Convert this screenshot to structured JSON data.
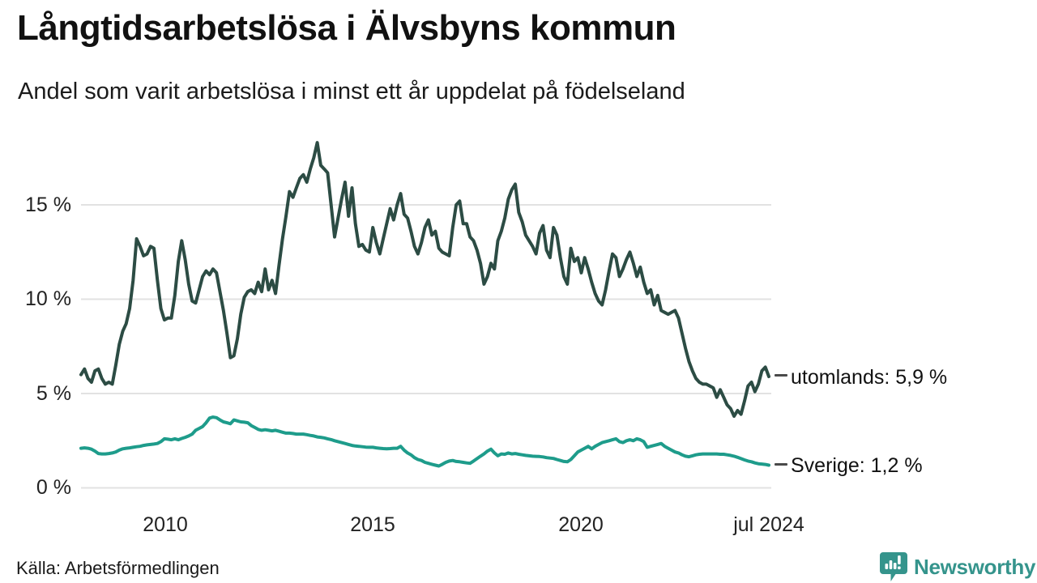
{
  "header": {
    "title": "Långtidsarbetslösa i Älvsbyns kommun",
    "subtitle": "Andel som varit arbetslösa i minst ett år uppdelat på födelseland"
  },
  "footer": {
    "source": "Källa: Arbetsförmedlingen",
    "brand": "Newsworthy"
  },
  "colors": {
    "utomlands_line": "#2c4c44",
    "sverige_line": "#1e9c8b",
    "grid": "#e2e2e2",
    "text": "#1a1a1a",
    "tick_dash": "#4a4a4a",
    "brand_teal": "#35948c"
  },
  "chart_data": {
    "type": "line",
    "title": "Långtidsarbetslösa i Älvsbyns kommun",
    "subtitle": "Andel som varit arbetslösa i minst ett år uppdelat på födelseland",
    "unit": "%",
    "grid": true,
    "legend_position": "end-of-line-right",
    "x_start": 2008.0,
    "x_step_years": 0.0833333,
    "xlim": [
      2008.0,
      2024.5
    ],
    "ylim": [
      0,
      15
    ],
    "yticks": [
      {
        "value": 15,
        "label": "15 %"
      },
      {
        "value": 10,
        "label": "10 %"
      },
      {
        "value": 5,
        "label": "5 %"
      },
      {
        "value": 0,
        "label": "0 %"
      }
    ],
    "xticks": [
      {
        "value": 2010,
        "label": "2010"
      },
      {
        "value": 2015,
        "label": "2015"
      },
      {
        "value": 2020,
        "label": "2020"
      },
      {
        "value": 2024.5,
        "label": "jul 2024"
      }
    ],
    "series": [
      {
        "name": "utomlands",
        "end_label": "utomlands: 5,9 %",
        "last_value": 5.9,
        "color": "#2c4c44",
        "values": [
          6.0,
          6.3,
          5.8,
          5.6,
          6.2,
          6.3,
          5.8,
          5.5,
          5.6,
          5.5,
          6.5,
          7.6,
          8.3,
          8.7,
          9.5,
          11.0,
          13.2,
          12.8,
          12.3,
          12.4,
          12.8,
          12.7,
          11.0,
          9.5,
          8.9,
          9.0,
          9.0,
          10.2,
          12.0,
          13.1,
          12.1,
          10.8,
          9.9,
          9.8,
          10.5,
          11.2,
          11.5,
          11.3,
          11.6,
          11.4,
          10.4,
          9.4,
          8.2,
          6.9,
          7.0,
          7.9,
          9.2,
          10.1,
          10.4,
          10.5,
          10.3,
          10.9,
          10.4,
          11.6,
          10.5,
          11.0,
          10.3,
          11.8,
          13.2,
          14.4,
          15.7,
          15.4,
          15.9,
          16.4,
          16.6,
          16.2,
          16.9,
          17.5,
          18.3,
          17.1,
          16.9,
          16.7,
          15.0,
          13.3,
          14.3,
          15.3,
          16.2,
          14.4,
          15.9,
          14.0,
          12.8,
          12.9,
          12.6,
          12.5,
          13.8,
          13.0,
          12.4,
          13.2,
          14.0,
          14.8,
          14.2,
          15.0,
          15.6,
          14.5,
          14.3,
          13.6,
          12.8,
          12.4,
          13.0,
          13.8,
          14.2,
          13.4,
          13.6,
          12.7,
          12.5,
          12.4,
          12.3,
          13.8,
          15.0,
          15.2,
          14.0,
          14.0,
          13.3,
          13.1,
          12.6,
          11.9,
          10.8,
          11.2,
          11.9,
          11.6,
          13.1,
          13.6,
          14.3,
          15.3,
          15.8,
          16.1,
          14.6,
          14.1,
          13.4,
          13.1,
          12.8,
          12.4,
          13.5,
          13.9,
          12.6,
          12.2,
          13.8,
          13.4,
          12.2,
          11.2,
          10.8,
          12.7,
          12.0,
          12.2,
          11.4,
          12.2,
          11.6,
          10.9,
          10.3,
          9.9,
          9.7,
          10.5,
          11.5,
          12.4,
          12.2,
          11.2,
          11.6,
          12.1,
          12.5,
          11.9,
          11.2,
          11.7,
          10.9,
          10.3,
          10.5,
          9.7,
          10.2,
          9.4,
          9.3,
          9.2,
          9.3,
          9.4,
          9.0,
          8.2,
          7.4,
          6.7,
          6.2,
          5.8,
          5.6,
          5.5,
          5.5,
          5.4,
          5.3,
          4.8,
          5.2,
          4.8,
          4.4,
          4.2,
          3.8,
          4.1,
          3.9,
          4.6,
          5.4,
          5.6,
          5.1,
          5.5,
          6.2,
          6.4,
          5.9
        ]
      },
      {
        "name": "Sverige",
        "end_label": "Sverige: 1,2 %",
        "last_value": 1.2,
        "color": "#1e9c8b",
        "values": [
          2.1,
          2.12,
          2.1,
          2.05,
          1.95,
          1.82,
          1.8,
          1.8,
          1.82,
          1.85,
          1.9,
          2.0,
          2.07,
          2.1,
          2.12,
          2.15,
          2.18,
          2.2,
          2.25,
          2.28,
          2.3,
          2.32,
          2.35,
          2.45,
          2.6,
          2.58,
          2.55,
          2.6,
          2.55,
          2.62,
          2.68,
          2.75,
          2.85,
          3.05,
          3.15,
          3.25,
          3.45,
          3.7,
          3.75,
          3.72,
          3.6,
          3.5,
          3.45,
          3.4,
          3.6,
          3.55,
          3.5,
          3.48,
          3.45,
          3.3,
          3.2,
          3.1,
          3.05,
          3.08,
          3.05,
          3.02,
          3.05,
          3.0,
          2.95,
          2.9,
          2.9,
          2.88,
          2.85,
          2.85,
          2.85,
          2.82,
          2.78,
          2.75,
          2.7,
          2.68,
          2.65,
          2.6,
          2.56,
          2.5,
          2.45,
          2.4,
          2.35,
          2.3,
          2.25,
          2.22,
          2.2,
          2.18,
          2.16,
          2.15,
          2.15,
          2.12,
          2.1,
          2.08,
          2.07,
          2.08,
          2.1,
          2.1,
          2.2,
          2.0,
          1.85,
          1.75,
          1.6,
          1.5,
          1.45,
          1.35,
          1.3,
          1.25,
          1.2,
          1.16,
          1.25,
          1.35,
          1.42,
          1.45,
          1.4,
          1.38,
          1.35,
          1.32,
          1.3,
          1.42,
          1.55,
          1.68,
          1.8,
          1.95,
          2.05,
          1.85,
          1.7,
          1.8,
          1.78,
          1.85,
          1.8,
          1.82,
          1.78,
          1.75,
          1.72,
          1.7,
          1.68,
          1.67,
          1.66,
          1.64,
          1.6,
          1.58,
          1.56,
          1.5,
          1.45,
          1.4,
          1.38,
          1.5,
          1.7,
          1.9,
          2.0,
          2.1,
          2.2,
          2.07,
          2.2,
          2.3,
          2.4,
          2.45,
          2.5,
          2.55,
          2.6,
          2.45,
          2.4,
          2.5,
          2.55,
          2.5,
          2.6,
          2.55,
          2.45,
          2.15,
          2.2,
          2.25,
          2.3,
          2.35,
          2.2,
          2.1,
          2.0,
          1.9,
          1.85,
          1.75,
          1.68,
          1.65,
          1.7,
          1.75,
          1.78,
          1.8,
          1.8,
          1.8,
          1.8,
          1.8,
          1.78,
          1.78,
          1.75,
          1.72,
          1.68,
          1.62,
          1.55,
          1.48,
          1.42,
          1.38,
          1.32,
          1.28,
          1.26,
          1.24,
          1.2
        ]
      }
    ],
    "source": "Arbetsförmedlingen"
  }
}
